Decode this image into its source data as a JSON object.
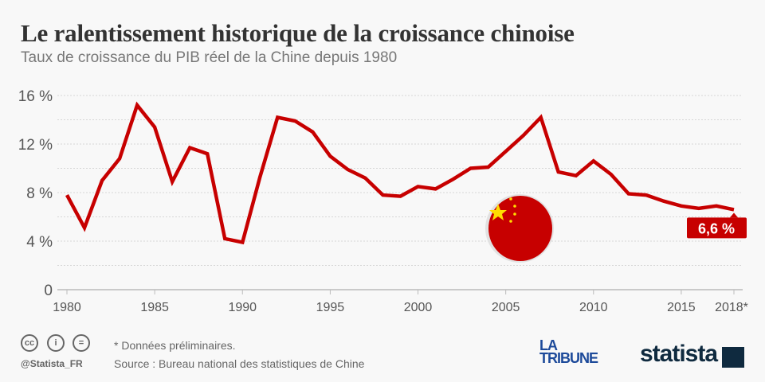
{
  "header": {
    "title": "Le ralentissement historique de la croissance chinoise",
    "subtitle": "Taux de croissance du PIB réel de la Chine depuis 1980"
  },
  "chart_data": {
    "type": "line",
    "title": "Le ralentissement historique de la croissance chinoise",
    "subtitle": "Taux de croissance du PIB réel de la Chine depuis 1980",
    "x": [
      1980,
      1981,
      1982,
      1983,
      1984,
      1985,
      1986,
      1987,
      1988,
      1989,
      1990,
      1991,
      1992,
      1993,
      1994,
      1995,
      1996,
      1997,
      1998,
      1999,
      2000,
      2001,
      2002,
      2003,
      2004,
      2005,
      2006,
      2007,
      2008,
      2009,
      2010,
      2011,
      2012,
      2013,
      2014,
      2015,
      2016,
      2017,
      2018
    ],
    "series": [
      {
        "values": [
          7.8,
          5.1,
          9.0,
          10.8,
          15.2,
          13.4,
          8.9,
          11.7,
          11.2,
          4.2,
          3.9,
          9.3,
          14.2,
          13.9,
          13.0,
          11.0,
          9.9,
          9.2,
          7.8,
          7.7,
          8.5,
          8.3,
          9.1,
          10.0,
          10.1,
          11.4,
          12.7,
          14.2,
          9.7,
          9.4,
          10.6,
          9.5,
          7.9,
          7.8,
          7.3,
          6.9,
          6.7,
          6.9,
          6.6
        ],
        "color": "#c70000"
      }
    ],
    "ylim": [
      0,
      16
    ],
    "yticks": [
      {
        "v": 0,
        "label": "0"
      },
      {
        "v": 4,
        "label": "4 %"
      },
      {
        "v": 8,
        "label": "8 %"
      },
      {
        "v": 12,
        "label": "12 %"
      },
      {
        "v": 16,
        "label": "16 %"
      }
    ],
    "xticks": [
      {
        "v": 1980,
        "label": "1980"
      },
      {
        "v": 1985,
        "label": "1985"
      },
      {
        "v": 1990,
        "label": "1990"
      },
      {
        "v": 1995,
        "label": "1995"
      },
      {
        "v": 2000,
        "label": "2000"
      },
      {
        "v": 2005,
        "label": "2005"
      },
      {
        "v": 2010,
        "label": "2010"
      },
      {
        "v": 2015,
        "label": "2015"
      },
      {
        "v": 2018,
        "label": "2018*"
      }
    ],
    "grid": true,
    "annotation": {
      "x": 2018,
      "y": 6.6,
      "label": "6,6 %"
    },
    "icon": "china-flag"
  },
  "footer": {
    "note": "* Données préliminaires.",
    "source": "Source : Bureau national des statistiques de Chine",
    "handle": "@Statista_FR",
    "license_icons": [
      "cc",
      "by",
      "nd"
    ],
    "logos": {
      "latribune": "LA TRIBUNE",
      "statista": "statista"
    }
  }
}
